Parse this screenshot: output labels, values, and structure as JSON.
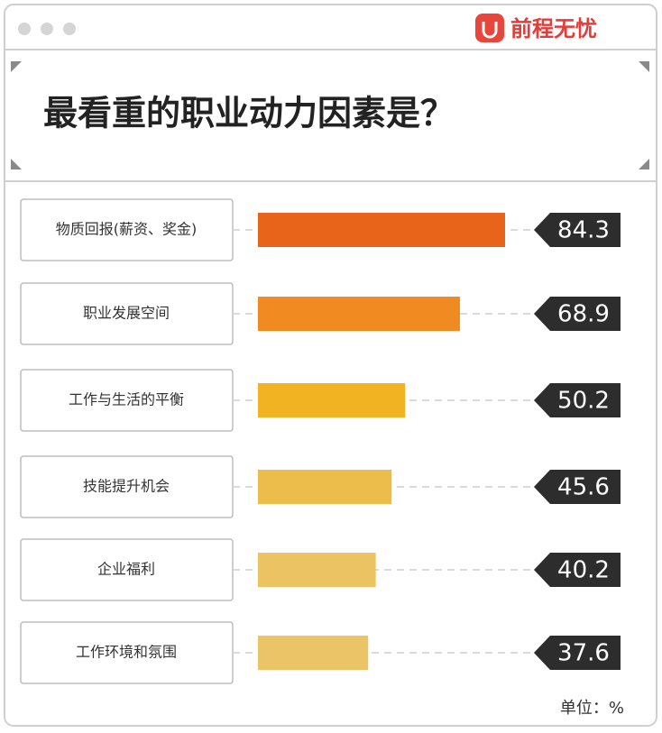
{
  "chart_data": {
    "type": "bar",
    "orientation": "horizontal",
    "brand": "前程无忧",
    "title": "最看重的职业动力因素是？",
    "categories": [
      "物质回报(薪资、奖金)",
      "职业发展空间",
      "工作与生活的平衡",
      "技能提升机会",
      "企业福利",
      "工作环境和氛围"
    ],
    "values": [
      84.3,
      68.9,
      50.2,
      45.6,
      40.2,
      37.6
    ],
    "colors": [
      "#e8641a",
      "#f08a21",
      "#f2b322",
      "#ecbd4b",
      "#ebc362",
      "#ebc468"
    ],
    "unit_label": "单位：%"
  }
}
